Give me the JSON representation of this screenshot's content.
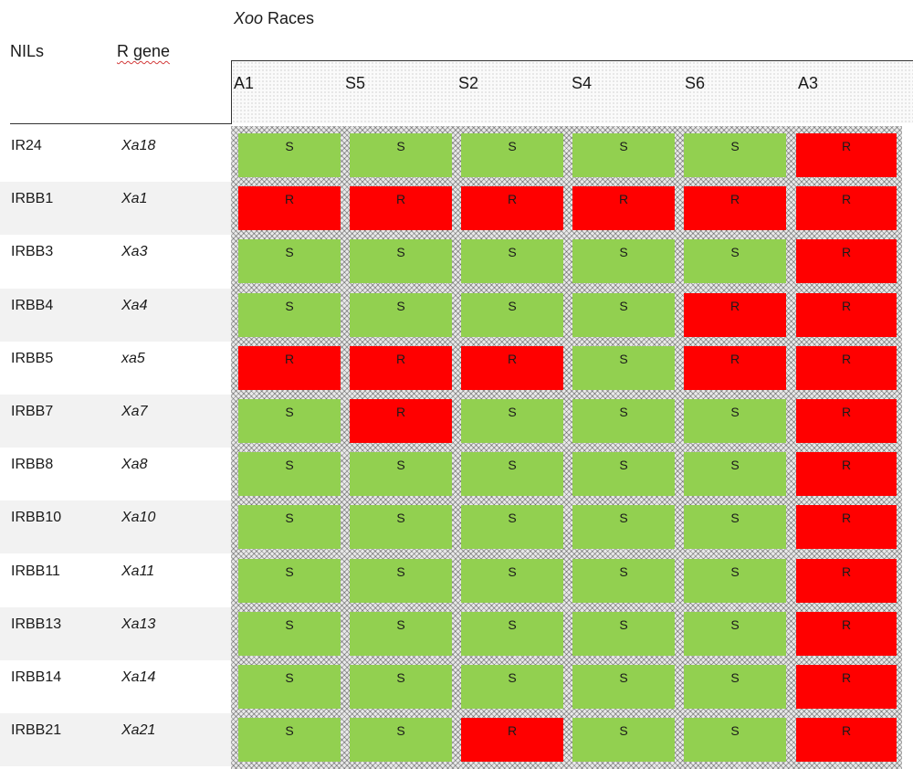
{
  "header": {
    "races_italic": "Xoo",
    "races_rest": " Races",
    "nils": "NILs",
    "rgene": "R gene"
  },
  "races": [
    "A1",
    "S5",
    "S2",
    "S4",
    "S6",
    "A3"
  ],
  "rows": [
    {
      "nil": "IR24",
      "gene": "Xa18",
      "values": [
        "S",
        "S",
        "S",
        "S",
        "S",
        "R"
      ]
    },
    {
      "nil": "IRBB1",
      "gene": "Xa1",
      "values": [
        "R",
        "R",
        "R",
        "R",
        "R",
        "R"
      ]
    },
    {
      "nil": "IRBB3",
      "gene": "Xa3",
      "values": [
        "S",
        "S",
        "S",
        "S",
        "S",
        "R"
      ]
    },
    {
      "nil": "IRBB4",
      "gene": "Xa4",
      "values": [
        "S",
        "S",
        "S",
        "S",
        "R",
        "R"
      ]
    },
    {
      "nil": "IRBB5",
      "gene": "xa5",
      "values": [
        "R",
        "R",
        "R",
        "S",
        "R",
        "R"
      ]
    },
    {
      "nil": "IRBB7",
      "gene": "Xa7",
      "values": [
        "S",
        "R",
        "S",
        "S",
        "S",
        "R"
      ]
    },
    {
      "nil": "IRBB8",
      "gene": "Xa8",
      "values": [
        "S",
        "S",
        "S",
        "S",
        "S",
        "R"
      ]
    },
    {
      "nil": "IRBB10",
      "gene": "Xa10",
      "values": [
        "S",
        "S",
        "S",
        "S",
        "S",
        "R"
      ]
    },
    {
      "nil": "IRBB11",
      "gene": "Xa11",
      "values": [
        "S",
        "S",
        "S",
        "S",
        "S",
        "R"
      ]
    },
    {
      "nil": "IRBB13",
      "gene": "Xa13",
      "values": [
        "S",
        "S",
        "S",
        "S",
        "S",
        "R"
      ]
    },
    {
      "nil": "IRBB14",
      "gene": "Xa14",
      "values": [
        "S",
        "S",
        "S",
        "S",
        "S",
        "R"
      ]
    },
    {
      "nil": "IRBB21",
      "gene": "Xa21",
      "values": [
        "S",
        "S",
        "R",
        "S",
        "S",
        "R"
      ]
    }
  ],
  "colors": {
    "S": "#92d050",
    "R": "#ff0000"
  }
}
